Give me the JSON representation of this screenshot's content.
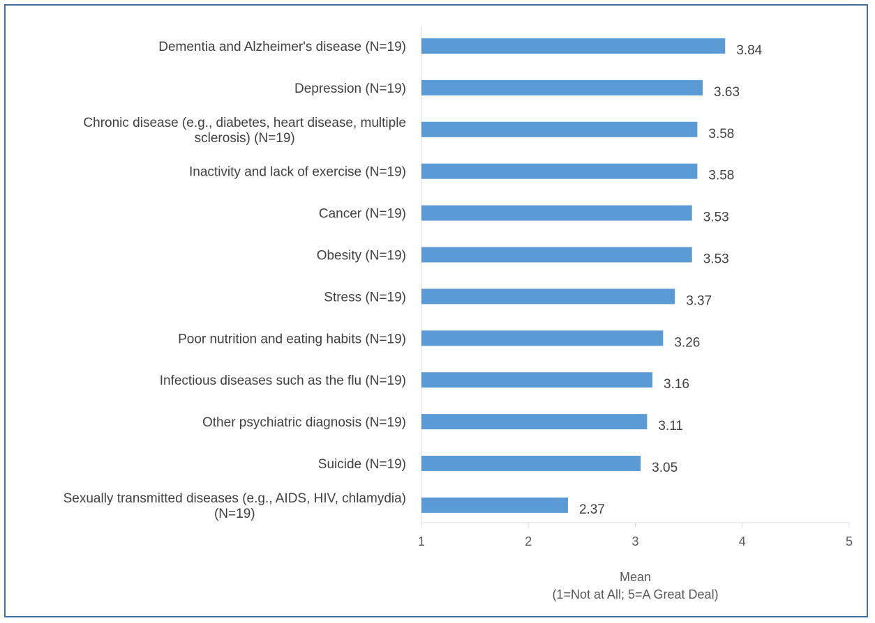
{
  "chart_data": {
    "type": "bar",
    "orientation": "horizontal",
    "categories": [
      "Dementia and Alzheimer's disease (N=19)",
      "Depression (N=19)",
      "Chronic disease (e.g., diabetes, heart disease, multiple sclerosis) (N=19)",
      "Inactivity and lack of exercise (N=19)",
      "Cancer (N=19)",
      "Obesity (N=19)",
      "Stress (N=19)",
      "Poor nutrition and eating habits (N=19)",
      "Infectious diseases such as the flu (N=19)",
      "Other psychiatric diagnosis (N=19)",
      "Suicide (N=19)",
      "Sexually transmitted diseases (e.g., AIDS, HIV, chlamydia) (N=19)"
    ],
    "category_lines": [
      [
        "Dementia and Alzheimer's disease (N=19)"
      ],
      [
        "Depression (N=19)"
      ],
      [
        "Chronic disease (e.g., diabetes, heart disease, multiple",
        "sclerosis) (N=19)"
      ],
      [
        "Inactivity and lack of exercise (N=19)"
      ],
      [
        "Cancer (N=19)"
      ],
      [
        "Obesity (N=19)"
      ],
      [
        "Stress (N=19)"
      ],
      [
        "Poor nutrition and eating habits (N=19)"
      ],
      [
        "Infectious diseases such as the flu (N=19)"
      ],
      [
        "Other psychiatric diagnosis (N=19)"
      ],
      [
        "Suicide (N=19)"
      ],
      [
        "Sexually transmitted diseases (e.g., AIDS, HIV, chlamydia)",
        "(N=19)"
      ]
    ],
    "values": [
      3.84,
      3.63,
      3.58,
      3.58,
      3.53,
      3.53,
      3.37,
      3.26,
      3.16,
      3.11,
      3.05,
      2.37
    ],
    "data_labels": [
      "3.84",
      "3.63",
      "3.58",
      "3.58",
      "3.53",
      "3.53",
      "3.37",
      "3.26",
      "3.16",
      "3.11",
      "3.05",
      "2.37"
    ],
    "xlim": [
      1,
      5
    ],
    "xticks": [
      1,
      2,
      3,
      4,
      5
    ],
    "xlabel": [
      "Mean",
      "(1=Not at All; 5=A Great Deal)"
    ],
    "ylabel": "",
    "title": "",
    "grid": false,
    "legend": "none",
    "bar_color": "#5B9BD5",
    "frame_color": "#41719C"
  }
}
